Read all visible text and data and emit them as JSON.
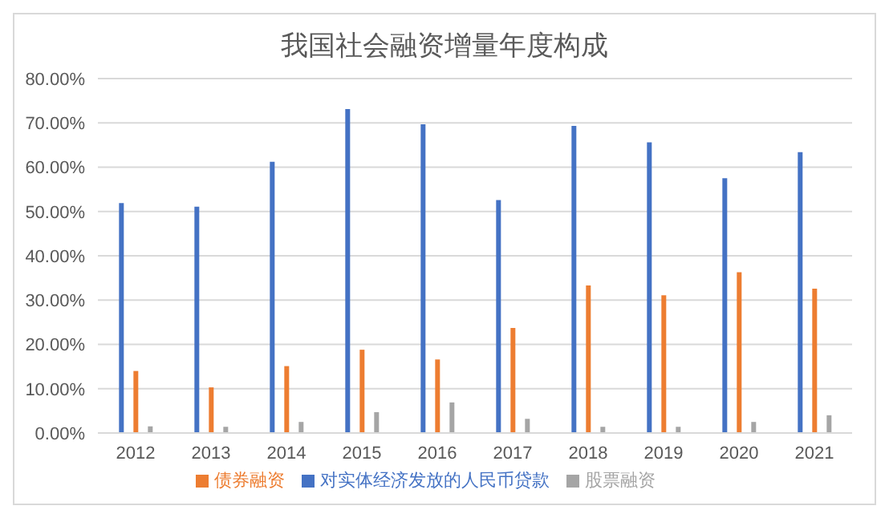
{
  "chart_data": {
    "type": "bar",
    "title": "我国社会融资增量年度构成",
    "categories": [
      "2012",
      "2013",
      "2014",
      "2015",
      "2016",
      "2017",
      "2018",
      "2019",
      "2020",
      "2021"
    ],
    "series": [
      {
        "name": "对实体经济发放的人民币贷款",
        "color": "#4472c4",
        "values": [
          51.9,
          51.1,
          61.2,
          73.1,
          69.7,
          52.6,
          69.3,
          65.6,
          57.5,
          63.4
        ]
      },
      {
        "name": "债券融资",
        "color": "#ed7d31",
        "values": [
          14.0,
          10.3,
          15.1,
          18.8,
          16.6,
          23.7,
          33.3,
          31.1,
          36.3,
          32.6
        ]
      },
      {
        "name": "股票融资",
        "color": "#a5a5a5",
        "values": [
          1.5,
          1.4,
          2.5,
          4.7,
          6.9,
          3.2,
          1.4,
          1.4,
          2.5,
          4.0
        ]
      }
    ],
    "ylim": [
      0,
      80
    ],
    "yticks": [
      {
        "value": 0,
        "label": "0.00%"
      },
      {
        "value": 10,
        "label": "10.00%"
      },
      {
        "value": 20,
        "label": "20.00%"
      },
      {
        "value": 30,
        "label": "30.00%"
      },
      {
        "value": 40,
        "label": "40.00%"
      },
      {
        "value": 50,
        "label": "50.00%"
      },
      {
        "value": 60,
        "label": "60.00%"
      },
      {
        "value": 70,
        "label": "70.00%"
      },
      {
        "value": 80,
        "label": "80.00%"
      }
    ],
    "grid": "y",
    "legend": "bottom"
  }
}
